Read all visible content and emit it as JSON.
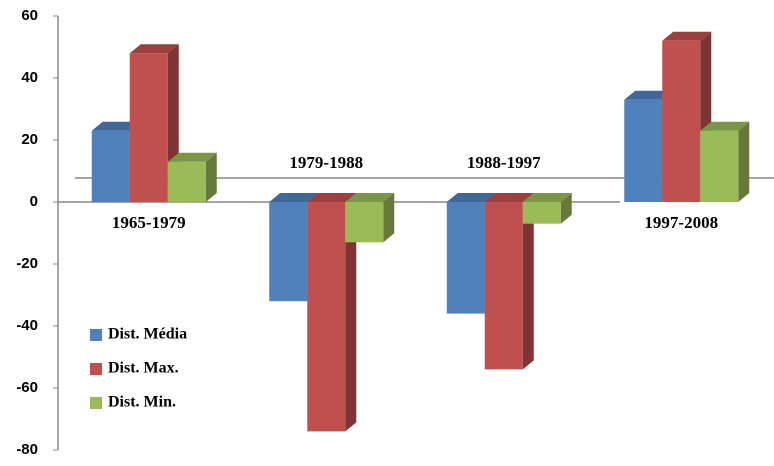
{
  "chart_data": {
    "type": "bar3d",
    "categories": [
      "1965-1979",
      "1979-1988",
      "1988-1997",
      "1997-2008"
    ],
    "series": [
      {
        "name": "Dist. Média",
        "color": "#4f81bd",
        "values": [
          23,
          -32,
          -36,
          33
        ]
      },
      {
        "name": "Dist. Max.",
        "color": "#c0504d",
        "values": [
          48,
          -74,
          -54,
          52
        ]
      },
      {
        "name": "Dist. Min.",
        "color": "#9bbb59",
        "values": [
          13,
          -13,
          -7,
          23
        ]
      }
    ],
    "ylim": [
      -80,
      60
    ],
    "yticks": [
      -80,
      -60,
      -40,
      -20,
      0,
      20,
      40,
      60
    ]
  }
}
